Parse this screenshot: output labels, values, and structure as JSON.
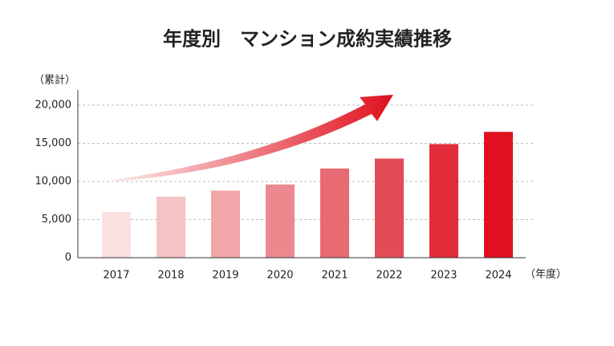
{
  "chart_data": {
    "type": "bar",
    "title": "年度別　マンション成約実績推移",
    "y_label": "（累計）",
    "x_label": "（年度）",
    "categories": [
      "2017",
      "2018",
      "2019",
      "2020",
      "2021",
      "2022",
      "2023",
      "2024"
    ],
    "values": [
      6000,
      8000,
      8800,
      9600,
      11700,
      13000,
      14900,
      16500
    ],
    "colors": [
      "#fbe1e1",
      "#f6c3c5",
      "#f1a6aa",
      "#ec898f",
      "#e86b73",
      "#e34c57",
      "#e12c3a",
      "#e0101e"
    ],
    "ylim": [
      0,
      22000
    ],
    "yticks": [
      0,
      {
        "value": 5000,
        "label": "5,000"
      },
      {
        "value": 10000,
        "label": "10,000"
      },
      {
        "value": 15000,
        "label": "15,000"
      },
      {
        "value": 20000,
        "label": "20,000"
      }
    ],
    "grid": true
  }
}
